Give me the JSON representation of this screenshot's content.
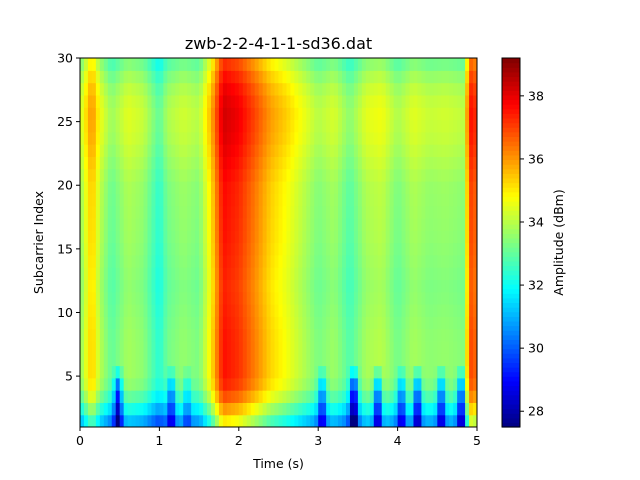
{
  "chart_data": {
    "type": "heatmap",
    "title": "zwb-2-2-4-1-1-sd36.dat",
    "xlabel": "Time (s)",
    "ylabel": "Subcarrier Index",
    "colorbar_label": "Amplitude (dBm)",
    "colormap": "jet",
    "xlim": [
      0,
      5
    ],
    "ylim": [
      1,
      30
    ],
    "xticks": [
      0,
      1,
      2,
      3,
      4,
      5
    ],
    "yticks": [
      5,
      10,
      15,
      20,
      25,
      30
    ],
    "color_range": [
      27.5,
      39.2
    ],
    "colorbar_ticks": [
      28,
      30,
      32,
      34,
      36,
      38
    ],
    "grid": false,
    "time_profile": [
      [
        0.0,
        33.5
      ],
      [
        0.15,
        35.5
      ],
      [
        0.25,
        34.0
      ],
      [
        0.4,
        33.0
      ],
      [
        0.6,
        33.8
      ],
      [
        0.8,
        33.5
      ],
      [
        1.0,
        32.3
      ],
      [
        1.1,
        33.2
      ],
      [
        1.3,
        33.6
      ],
      [
        1.5,
        33.3
      ],
      [
        1.65,
        35.0
      ],
      [
        1.8,
        37.6
      ],
      [
        2.0,
        37.2
      ],
      [
        2.2,
        36.3
      ],
      [
        2.4,
        35.3
      ],
      [
        2.6,
        34.7
      ],
      [
        2.8,
        34.0
      ],
      [
        3.0,
        33.3
      ],
      [
        3.2,
        33.7
      ],
      [
        3.4,
        32.8
      ],
      [
        3.6,
        33.8
      ],
      [
        3.8,
        34.0
      ],
      [
        4.0,
        33.2
      ],
      [
        4.2,
        33.8
      ],
      [
        4.4,
        33.5
      ],
      [
        4.6,
        33.6
      ],
      [
        4.85,
        33.4
      ],
      [
        4.9,
        37.0
      ],
      [
        5.0,
        36.5
      ]
    ],
    "subcarrier_profile": [
      [
        1,
        -3.0
      ],
      [
        2,
        -2.0
      ],
      [
        3,
        -1.0
      ],
      [
        4,
        -0.3
      ],
      [
        5,
        0.0
      ],
      [
        8,
        0.0
      ],
      [
        12,
        -0.2
      ],
      [
        16,
        0.0
      ],
      [
        20,
        0.1
      ],
      [
        24,
        0.6
      ],
      [
        26,
        0.7
      ],
      [
        28,
        0.3
      ],
      [
        30,
        -0.5
      ]
    ],
    "low_amplitude_dips": [
      {
        "time": 0.48,
        "depth": 3.5
      },
      {
        "time": 1.15,
        "depth": 2.5
      },
      {
        "time": 1.35,
        "depth": 1.5
      },
      {
        "time": 3.05,
        "depth": 2.5
      },
      {
        "time": 3.45,
        "depth": 4.0
      },
      {
        "time": 3.75,
        "depth": 3.5
      },
      {
        "time": 4.05,
        "depth": 2.5
      },
      {
        "time": 4.25,
        "depth": 3.5
      },
      {
        "time": 4.55,
        "depth": 3.0
      },
      {
        "time": 4.8,
        "depth": 3.0
      }
    ]
  }
}
